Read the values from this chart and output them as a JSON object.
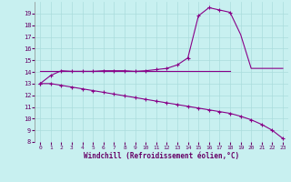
{
  "xlabel": "Windchill (Refroidissement éolien,°C)",
  "bg_color": "#c8f0f0",
  "line_color": "#880088",
  "xlim": [
    -0.5,
    23.5
  ],
  "ylim": [
    8,
    20
  ],
  "yticks": [
    8,
    9,
    10,
    11,
    12,
    13,
    14,
    15,
    16,
    17,
    18,
    19
  ],
  "xticks": [
    0,
    1,
    2,
    3,
    4,
    5,
    6,
    7,
    8,
    9,
    10,
    11,
    12,
    13,
    14,
    15,
    16,
    17,
    18,
    19,
    20,
    21,
    22,
    23
  ],
  "line1_x": [
    0,
    1,
    2,
    3,
    4,
    5,
    6,
    7,
    8,
    9,
    10,
    11,
    12,
    13,
    14,
    15,
    16,
    17,
    18,
    19,
    20,
    21,
    22,
    23
  ],
  "line1_y": [
    13.0,
    13.7,
    14.1,
    14.05,
    14.05,
    14.05,
    14.1,
    14.1,
    14.1,
    14.05,
    14.1,
    14.2,
    14.3,
    14.6,
    15.2,
    18.8,
    19.5,
    19.3,
    19.1,
    17.2,
    14.3,
    14.3,
    14.3,
    14.3
  ],
  "line1_marker_x": [
    0,
    1,
    2,
    3,
    4,
    5,
    6,
    7,
    8,
    9,
    10,
    11,
    12,
    13,
    14,
    15,
    16,
    17,
    18
  ],
  "line1_marker_y": [
    13.0,
    13.7,
    14.1,
    14.05,
    14.05,
    14.05,
    14.1,
    14.1,
    14.1,
    14.05,
    14.1,
    14.2,
    14.3,
    14.6,
    15.2,
    18.8,
    19.5,
    19.3,
    19.1
  ],
  "line2_x": [
    0,
    18
  ],
  "line2_y": [
    14.05,
    14.05
  ],
  "line3_x": [
    0,
    1,
    2,
    3,
    4,
    5,
    6,
    7,
    8,
    9,
    10,
    11,
    12,
    13,
    14,
    15,
    16,
    17,
    18,
    19,
    20,
    21,
    22,
    23
  ],
  "line3_y": [
    13.0,
    13.0,
    12.85,
    12.7,
    12.55,
    12.4,
    12.25,
    12.1,
    11.95,
    11.8,
    11.65,
    11.5,
    11.35,
    11.2,
    11.05,
    10.9,
    10.75,
    10.6,
    10.45,
    10.2,
    9.9,
    9.5,
    9.0,
    8.3
  ],
  "grid_color": "#aadcdc",
  "tick_color": "#660066",
  "xlabel_color": "#660066"
}
